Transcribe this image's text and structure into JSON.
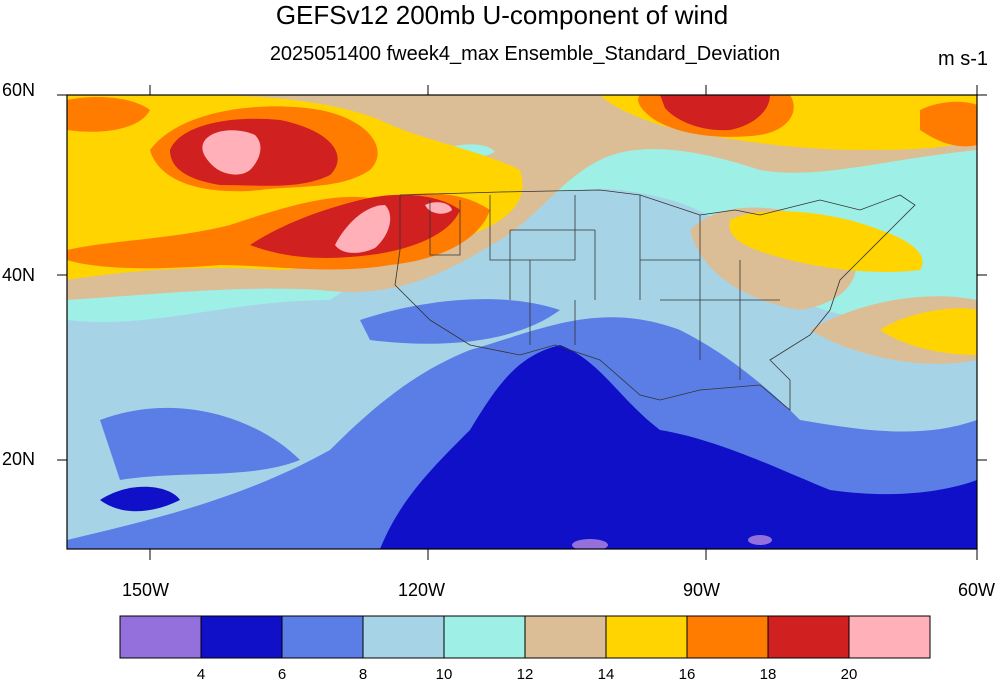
{
  "title": "GEFSv12 200mb U-component of wind",
  "subtitle": "2025051400 fweek4_max Ensemble_Standard_Deviation",
  "units": "m s-1",
  "lat_labels": [
    "60N",
    "40N",
    "20N"
  ],
  "lon_labels": [
    "150W",
    "120W",
    "90W",
    "60W"
  ],
  "colorbar": {
    "labels": [
      "4",
      "6",
      "8",
      "10",
      "12",
      "14",
      "16",
      "18",
      "20"
    ],
    "colors": [
      "#9370db",
      "#1010c8",
      "#5a7ee6",
      "#a6d4e6",
      "#9ef0e6",
      "#dcbe96",
      "#ffd400",
      "#ff7c00",
      "#d02020",
      "#ffb0b8"
    ]
  },
  "map_data": {
    "variable": "200mb U-component of wind ensemble standard deviation",
    "lat_range": [
      10,
      60
    ],
    "lon_range": [
      -160,
      -60
    ]
  }
}
